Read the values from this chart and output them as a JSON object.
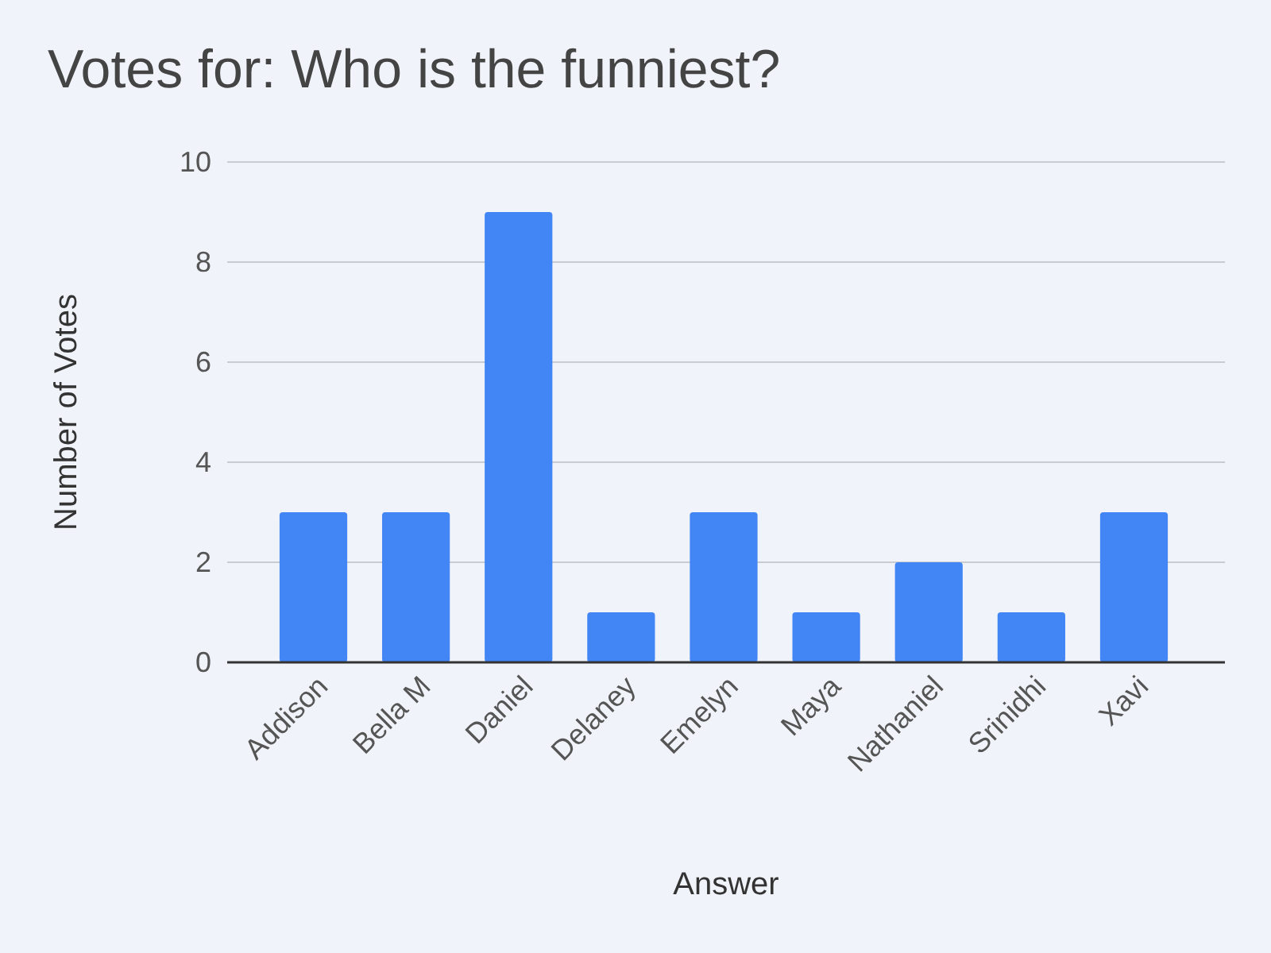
{
  "chart_data": {
    "type": "bar",
    "title": "Votes for: Who is the funniest?",
    "xlabel": "Answer",
    "ylabel": "Number of Votes",
    "categories": [
      "Addison",
      "Bella M",
      "Daniel",
      "Delaney",
      "Emelyn",
      "Maya",
      "Nathaniel",
      "Srinidhi",
      "Xavi"
    ],
    "values": [
      3,
      3,
      9,
      1,
      3,
      1,
      2,
      1,
      3
    ],
    "color": "#4285f4",
    "ylim": [
      0,
      10
    ],
    "yticks": [
      0,
      2,
      4,
      6,
      8,
      10
    ],
    "grid": "y"
  }
}
